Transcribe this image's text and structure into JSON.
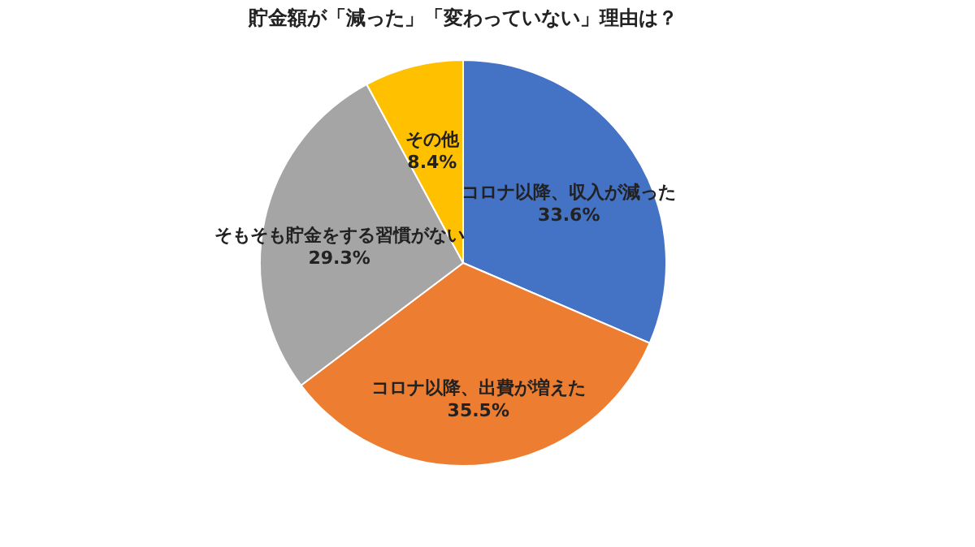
{
  "chart_data": {
    "type": "pie",
    "title": "貯金額が「減った」「変わっていない」理由は？",
    "categories": [
      "コロナ以降、収入が減った",
      "コロナ以降、出費が増えた",
      "そもそも貯金をする習慣がない",
      "その他"
    ],
    "values": [
      33.6,
      35.5,
      29.3,
      8.4
    ],
    "colors": [
      "#4472c4",
      "#ed7d31",
      "#a5a5a5",
      "#ffc000"
    ],
    "value_labels": [
      "33.6%",
      "35.5%",
      "29.3%",
      "8.4%"
    ],
    "legend": false
  }
}
